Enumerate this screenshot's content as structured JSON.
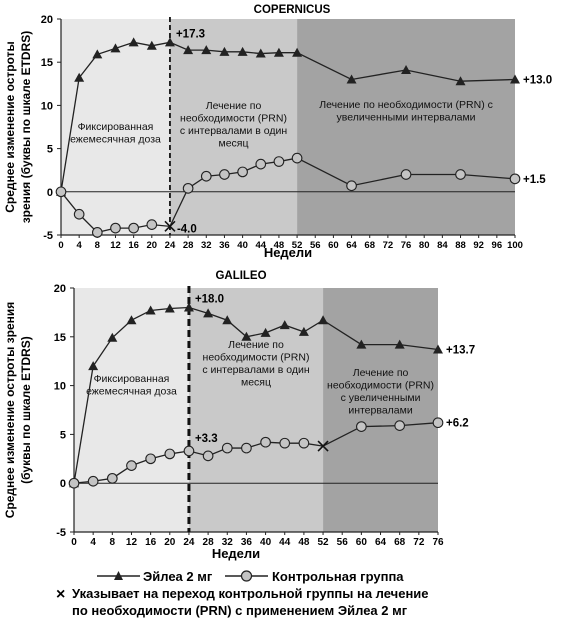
{
  "legend": {
    "eylea_label": "Эйлеа  2 мг",
    "control_label": "Контрольная группа",
    "note_line1": "Указывает на переход контрольной группы на лечение",
    "note_line2": "по необходимости (PRN) с применением Эйлеа  2 мг",
    "note_marker": "×"
  },
  "colors": {
    "phase1": "#e8e8e8",
    "phase2": "#c9c9c9",
    "phase3": "#a3a3a3",
    "line": "#222222",
    "control_fill": "#c4c4c4"
  },
  "chart_data": [
    {
      "type": "line",
      "title": "COPERNICUS",
      "xlabel": "Недели",
      "ylabel_line1": "Среднее изменение остроты",
      "ylabel_line2": "зрения (буквы по шкале ETDRS)",
      "xticks": [
        0,
        4,
        8,
        12,
        16,
        20,
        24,
        28,
        32,
        36,
        40,
        44,
        48,
        52,
        56,
        60,
        64,
        68,
        72,
        76,
        80,
        84,
        88,
        92,
        96,
        100
      ],
      "xlim": [
        0,
        100
      ],
      "yticks": [
        -5,
        0,
        5,
        10,
        15,
        20
      ],
      "ylim": [
        -5,
        20
      ],
      "grid": false,
      "phases": [
        {
          "from": 0,
          "to": 24,
          "label_lines": [
            "Фиксированная",
            "ежемесячная доза"
          ]
        },
        {
          "from": 24,
          "to": 52,
          "label_lines": [
            "Лечение по",
            "необходимости (PRN)",
            "с интервалами в один",
            "месяц"
          ]
        },
        {
          "from": 52,
          "to": 100,
          "label_lines": [
            "Лечение по необходимости (PRN) с",
            "увеличенными интервалами"
          ]
        }
      ],
      "dashed_line_at": 24,
      "series": [
        {
          "name": "Эйлеа  2 мг",
          "marker": "triangle",
          "x": [
            0,
            4,
            8,
            12,
            16,
            20,
            24,
            28,
            32,
            36,
            40,
            44,
            48,
            52,
            64,
            76,
            88,
            100
          ],
          "y": [
            0,
            13.2,
            15.9,
            16.6,
            17.3,
            16.9,
            17.3,
            16.4,
            16.4,
            16.2,
            16.2,
            16.0,
            16.1,
            16.1,
            13.0,
            14.1,
            12.8,
            13.0
          ]
        },
        {
          "name": "Контрольная группа",
          "marker": "circle",
          "x": [
            0,
            4,
            8,
            12,
            16,
            20,
            24,
            28,
            32,
            36,
            40,
            44,
            48,
            52,
            64,
            76,
            88,
            100
          ],
          "y": [
            0,
            -2.6,
            -4.7,
            -4.2,
            -4.2,
            -3.8,
            -4.0,
            0.4,
            1.8,
            2.0,
            2.3,
            3.2,
            3.5,
            3.9,
            0.7,
            2.0,
            2.0,
            1.5
          ]
        }
      ],
      "annotations": [
        {
          "text": "+17.3",
          "x": 24,
          "y": 17.3,
          "anchor": "series0"
        },
        {
          "text": "-4.0",
          "x": 24,
          "y": -4.0,
          "anchor": "series1"
        },
        {
          "text": "+13.0",
          "x": 100,
          "y": 13.0,
          "anchor": "series0"
        },
        {
          "text": "+1.5",
          "x": 100,
          "y": 1.5,
          "anchor": "series1"
        }
      ],
      "crossover": {
        "x": 24,
        "y": -4.0
      }
    },
    {
      "type": "line",
      "title": "GALILEO",
      "xlabel": "Недели",
      "ylabel_line1": "Среднее изменение остроты зрения",
      "ylabel_line2": "(буквы по шкале ETDRS)",
      "xticks": [
        0,
        4,
        8,
        12,
        16,
        20,
        24,
        28,
        32,
        36,
        40,
        44,
        48,
        52,
        56,
        60,
        64,
        68,
        72,
        76
      ],
      "xlim": [
        0,
        76
      ],
      "yticks": [
        -5,
        0,
        5,
        10,
        15,
        20
      ],
      "ylim": [
        -5,
        20
      ],
      "grid": false,
      "phases": [
        {
          "from": 0,
          "to": 24,
          "label_lines": [
            "Фиксированная",
            "ежемесячная доза"
          ]
        },
        {
          "from": 24,
          "to": 52,
          "label_lines": [
            "Лечение по",
            "необходимости (PRN)",
            "с интервалами в один",
            "месяц"
          ]
        },
        {
          "from": 52,
          "to": 76,
          "label_lines": [
            "Лечение по",
            "необходимости (PRN)",
            "с увеличенными",
            "интервалами"
          ]
        }
      ],
      "dashed_line_at": 24,
      "series": [
        {
          "name": "Эйлеа  2 мг",
          "marker": "triangle",
          "x": [
            0,
            4,
            8,
            12,
            16,
            20,
            24,
            28,
            32,
            36,
            40,
            44,
            48,
            52,
            60,
            68,
            76
          ],
          "y": [
            0,
            12.0,
            14.9,
            16.7,
            17.7,
            17.9,
            18.0,
            17.4,
            16.7,
            15.0,
            15.4,
            16.2,
            15.5,
            16.7,
            14.2,
            14.2,
            13.7
          ]
        },
        {
          "name": "Контрольная группа",
          "marker": "circle",
          "x": [
            0,
            4,
            8,
            12,
            16,
            20,
            24,
            28,
            32,
            36,
            40,
            44,
            48,
            52,
            60,
            68,
            76
          ],
          "y": [
            0,
            0.2,
            0.5,
            1.8,
            2.5,
            3.0,
            3.3,
            2.8,
            3.6,
            3.6,
            4.2,
            4.1,
            4.1,
            3.8,
            5.8,
            5.9,
            6.2
          ]
        }
      ],
      "annotations": [
        {
          "text": "+18.0",
          "x": 24,
          "y": 18.0,
          "anchor": "series0"
        },
        {
          "text": "+3.3",
          "x": 24,
          "y": 3.3,
          "anchor": "series1"
        },
        {
          "text": "+13.7",
          "x": 76,
          "y": 13.7,
          "anchor": "series0"
        },
        {
          "text": "+6.2",
          "x": 76,
          "y": 6.2,
          "anchor": "series1"
        }
      ],
      "crossover": {
        "x": 52,
        "y": 3.8
      }
    }
  ]
}
